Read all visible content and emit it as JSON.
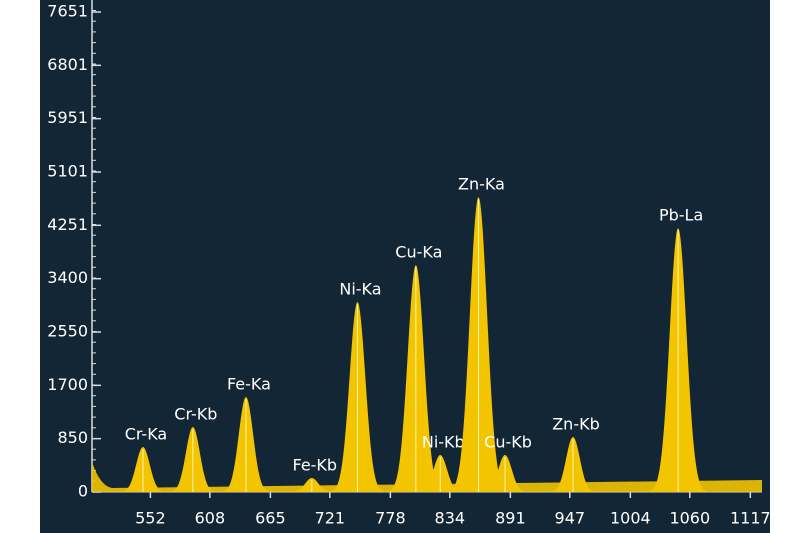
{
  "chart_data": {
    "type": "spectrum",
    "x": [
      545,
      592,
      642,
      704,
      747,
      802,
      825,
      861,
      886,
      950,
      1049
    ],
    "values": [
      717,
      1036,
      1514,
      223,
      3029,
      3618,
      590,
      4702,
      590,
      877,
      4208
    ],
    "point_labels": [
      "Cr-Ka",
      "Cr-Kb",
      "Fe-Ka",
      "Fe-Kb",
      "Ni-Ka",
      "Cu-Ka",
      "Ni-Kb",
      "Zn-Ka",
      "Cu-Kb",
      "Zn-Kb",
      "Pb-La"
    ],
    "color": "#f3c400",
    "xlim": [
      497,
      1128
    ],
    "xticks": [
      552,
      608,
      665,
      721,
      778,
      834,
      891,
      947,
      1004,
      1060,
      1117
    ],
    "ylim": [
      0,
      7651
    ],
    "yticks": [
      0,
      850,
      1700,
      2550,
      3400,
      4251,
      5101,
      5951,
      6801,
      7651
    ]
  }
}
